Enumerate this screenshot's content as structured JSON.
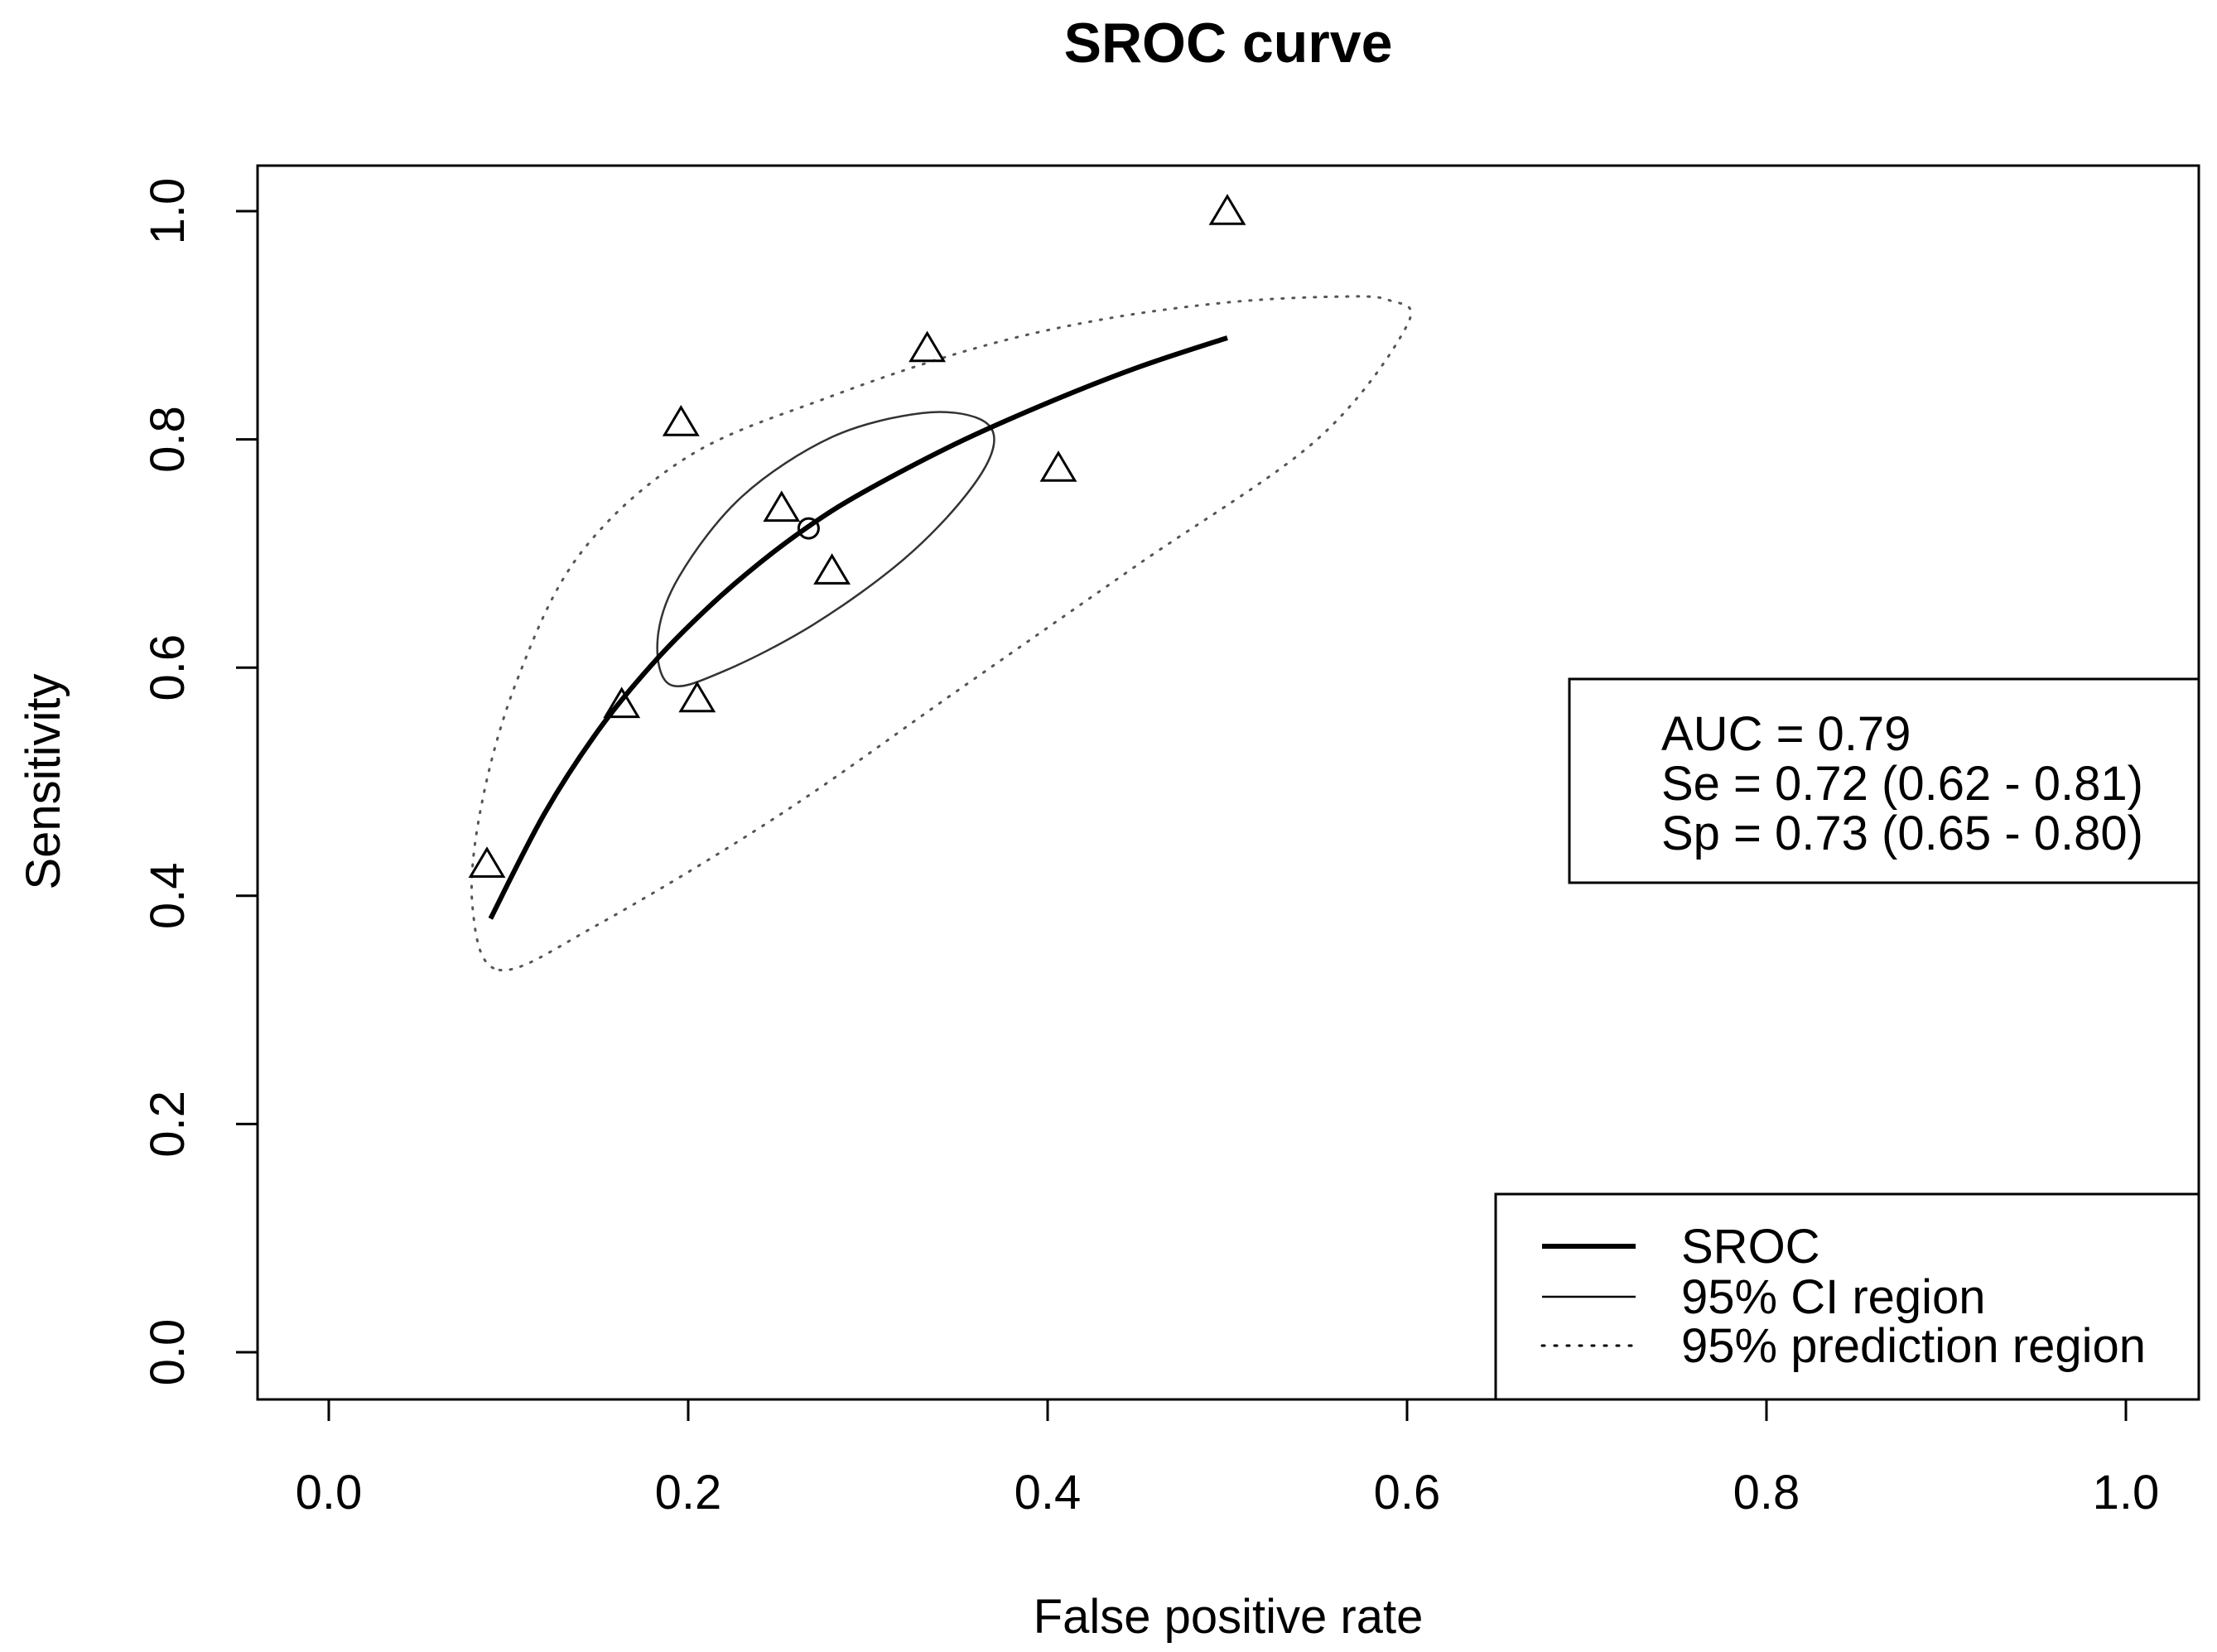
{
  "chart_data": {
    "type": "scatter",
    "title": "SROC curve",
    "xlabel": "False positive rate",
    "ylabel": "Sensitivity",
    "xlim": [
      0.0,
      1.0
    ],
    "ylim": [
      0.0,
      1.0
    ],
    "xticks": [
      "0.0",
      "0.2",
      "0.4",
      "0.6",
      "0.8",
      "1.0"
    ],
    "yticks": [
      "0.0",
      "0.2",
      "0.4",
      "0.6",
      "0.8",
      "1.0"
    ],
    "grid": false,
    "studies": {
      "name": "Studies",
      "marker": "triangle",
      "points": [
        {
          "x": 0.5,
          "y": 1.0
        },
        {
          "x": 0.333,
          "y": 0.88
        },
        {
          "x": 0.196,
          "y": 0.815
        },
        {
          "x": 0.406,
          "y": 0.775
        },
        {
          "x": 0.252,
          "y": 0.74
        },
        {
          "x": 0.28,
          "y": 0.685
        },
        {
          "x": 0.163,
          "y": 0.568
        },
        {
          "x": 0.205,
          "y": 0.573
        },
        {
          "x": 0.088,
          "y": 0.428
        }
      ]
    },
    "summary_point": {
      "x": 0.267,
      "y": 0.722,
      "marker": "circle"
    },
    "sroc_curve": {
      "name": "SROC",
      "x": [
        0.09,
        0.12,
        0.15,
        0.18,
        0.21,
        0.24,
        0.27,
        0.3,
        0.35,
        0.4,
        0.45,
        0.5
      ],
      "y": [
        0.38,
        0.472,
        0.545,
        0.603,
        0.651,
        0.692,
        0.727,
        0.756,
        0.797,
        0.832,
        0.863,
        0.889
      ]
    },
    "ci_region": {
      "name": "95% CI region",
      "x": [
        0.19,
        0.22,
        0.27,
        0.32,
        0.355,
        0.37,
        0.362,
        0.33,
        0.28,
        0.23,
        0.195,
        0.183,
        0.19
      ],
      "y": [
        0.585,
        0.597,
        0.638,
        0.695,
        0.752,
        0.795,
        0.818,
        0.823,
        0.802,
        0.75,
        0.68,
        0.625,
        0.585
      ]
    },
    "prediction_region": {
      "name": "95% prediction region",
      "x": [
        0.095,
        0.15,
        0.25,
        0.35,
        0.45,
        0.55,
        0.6,
        0.59,
        0.56,
        0.5,
        0.43,
        0.36,
        0.28,
        0.2,
        0.14,
        0.105,
        0.085,
        0.08,
        0.095
      ],
      "y": [
        0.335,
        0.375,
        0.47,
        0.58,
        0.69,
        0.8,
        0.9,
        0.922,
        0.925,
        0.92,
        0.905,
        0.88,
        0.838,
        0.785,
        0.7,
        0.59,
        0.48,
        0.39,
        0.335
      ]
    },
    "stats_box": {
      "auc": "AUC = 0.79",
      "se": "Se = 0.72 (0.62 - 0.81)",
      "sp": "Sp = 0.73 (0.65 - 0.80)"
    },
    "legend": {
      "position": "bottom-right",
      "entries": [
        {
          "label": "SROC",
          "style": "thick"
        },
        {
          "label": "95% CI region",
          "style": "solid"
        },
        {
          "label": "95% prediction region",
          "style": "dotted"
        }
      ]
    }
  }
}
